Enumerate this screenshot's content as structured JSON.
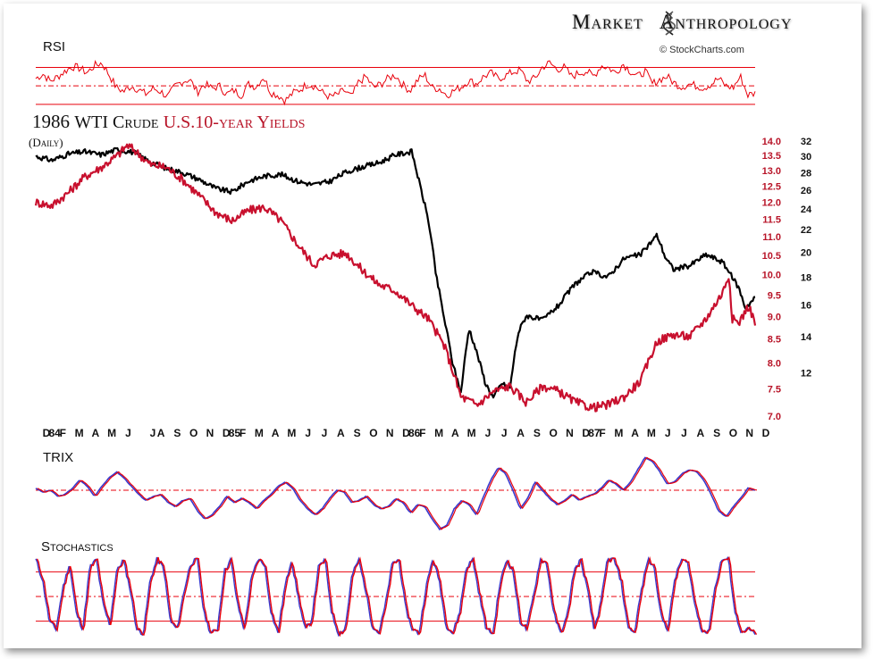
{
  "brand": {
    "left": "Market",
    "right": "Anthropology",
    "copyright": "© StockCharts.com"
  },
  "colors": {
    "crude": "#000000",
    "yields": "#c8102e",
    "band": "#e8000b",
    "trix_blue": "#3a3acd"
  },
  "chart_data": [
    {
      "type": "line",
      "panel": "RSI",
      "label": "RSI",
      "reference_lines": [
        "overbought",
        "midline",
        "oversold"
      ],
      "series": [
        {
          "values": [
            58,
            63,
            55,
            60,
            66,
            71,
            69,
            64,
            72,
            75,
            62,
            48,
            44,
            50,
            46,
            41,
            47,
            44,
            38,
            50,
            55,
            57,
            43,
            52,
            47,
            50,
            41,
            45,
            40,
            52,
            49,
            60,
            43,
            40,
            34,
            42,
            46,
            52,
            50,
            43,
            38,
            40,
            45,
            38,
            54,
            60,
            48,
            52,
            58,
            62,
            51,
            45,
            56,
            62,
            48,
            47,
            40,
            45,
            49,
            56,
            52,
            60,
            64,
            58,
            61,
            65,
            67,
            55,
            58,
            70,
            75,
            68,
            70,
            60,
            64,
            66,
            60,
            72,
            70,
            64,
            74,
            66,
            60,
            66,
            52,
            57,
            60,
            53,
            49,
            52,
            50,
            48,
            52,
            58,
            50,
            48,
            60,
            40,
            42
          ]
        }
      ]
    },
    {
      "type": "line",
      "panel": "price",
      "title": "1986",
      "title_crude": "WTI Crude",
      "title_yields": "U.S.10-year Yields",
      "subtitle": "(Daily)",
      "x_labels": [
        "D",
        "84",
        "F",
        "M",
        "A",
        "M",
        "J",
        "J",
        "A",
        "S",
        "O",
        "N",
        "D",
        "85",
        "F",
        "M",
        "A",
        "M",
        "J",
        "J",
        "A",
        "S",
        "O",
        "N",
        "D",
        "86",
        "F",
        "M",
        "A",
        "M",
        "J",
        "J",
        "A",
        "S",
        "O",
        "N",
        "D",
        "87",
        "F",
        "M",
        "A",
        "M",
        "J",
        "J",
        "A",
        "S",
        "O",
        "N",
        "D"
      ],
      "x_label_positions": [
        0,
        0.5,
        1,
        2,
        3,
        4,
        5,
        6.5,
        7,
        8,
        9,
        10,
        11,
        11.5,
        12,
        13,
        14,
        15,
        16,
        17,
        18,
        19,
        20,
        21,
        22,
        22.5,
        23,
        24,
        25,
        26,
        27,
        28,
        29,
        30,
        31,
        32,
        33,
        33.5,
        34,
        35,
        36,
        37,
        38,
        39,
        40,
        41,
        42,
        43,
        44
      ],
      "yield_axis": {
        "ticks": [
          "14.0",
          "13.5",
          "13.0",
          "12.5",
          "12.0",
          "11.5",
          "11.0",
          "10.5",
          "10.0",
          "9.5",
          "9.0",
          "8.5",
          "8.0",
          "7.5",
          "7.0"
        ],
        "range": [
          7.0,
          14.0
        ],
        "scale": "log"
      },
      "crude_axis": {
        "ticks": [
          "32",
          "30",
          "28",
          "26",
          "24",
          "22",
          "20",
          "18",
          "16",
          "14",
          "12"
        ],
        "range": [
          10.0,
          32.0
        ],
        "scale": "log"
      },
      "series": [
        {
          "key": "crude",
          "name": "WTI Crude",
          "x": [
            0,
            1,
            2,
            3,
            4,
            5,
            6,
            7,
            8,
            9,
            10,
            11,
            12,
            13,
            14,
            15,
            16,
            17,
            18,
            19,
            20,
            21,
            22,
            23,
            23.5,
            24,
            24.5,
            25,
            25.5,
            26,
            26.5,
            27,
            27.5,
            28,
            28.5,
            29,
            29.5,
            30,
            31,
            32,
            33,
            34,
            35,
            36,
            37,
            38,
            38.5,
            39,
            40,
            41,
            42,
            43,
            43.4,
            44
          ],
          "values": [
            30.0,
            29.5,
            30.3,
            30.6,
            30.2,
            30.9,
            30.5,
            29.3,
            28.5,
            28.0,
            27.2,
            26.2,
            25.8,
            27.0,
            27.6,
            27.8,
            27.0,
            26.6,
            27.0,
            28.1,
            28.7,
            29.2,
            30.2,
            30.6,
            26.5,
            23.0,
            18.0,
            15.0,
            12.5,
            11.0,
            14.5,
            13.0,
            11.5,
            10.8,
            11.5,
            11.2,
            14.2,
            15.3,
            15.0,
            16.0,
            17.5,
            18.4,
            18.0,
            19.5,
            19.8,
            21.5,
            19.6,
            18.6,
            18.9,
            19.8,
            19.2,
            17.2,
            15.8,
            16.5
          ]
        },
        {
          "key": "yields",
          "name": "U.S.10-year Yields",
          "x": [
            0,
            1,
            2,
            3,
            4,
            5,
            5.6,
            6,
            7,
            8,
            9,
            10,
            11,
            12,
            13,
            14,
            15,
            16,
            17,
            18,
            19,
            20,
            21,
            22,
            23,
            24,
            25,
            26,
            27,
            28,
            29,
            30,
            31,
            32,
            33,
            34,
            35,
            36,
            37,
            38,
            39,
            40,
            41,
            42,
            42.4,
            42.6,
            43,
            43.6,
            44
          ],
          "values": [
            12.0,
            11.9,
            12.3,
            12.8,
            13.1,
            13.5,
            13.85,
            13.7,
            13.2,
            13.1,
            12.7,
            12.2,
            11.7,
            11.45,
            11.75,
            11.85,
            11.45,
            10.8,
            10.25,
            10.5,
            10.55,
            10.1,
            9.75,
            9.6,
            9.25,
            8.95,
            8.35,
            7.35,
            7.2,
            7.45,
            7.55,
            7.25,
            7.55,
            7.45,
            7.25,
            7.15,
            7.2,
            7.35,
            7.65,
            8.45,
            8.6,
            8.55,
            8.95,
            9.55,
            10.0,
            8.95,
            8.85,
            9.25,
            8.85
          ]
        }
      ]
    },
    {
      "type": "line",
      "panel": "TRIX",
      "label": "TRIX",
      "series": [
        {
          "values": [
            0.1,
            -0.1,
            0.0,
            -0.3,
            -0.2,
            0.1,
            0.5,
            0.2,
            -0.3,
            0.2,
            0.6,
            0.9,
            0.6,
            0.2,
            -0.2,
            -0.5,
            -0.3,
            -0.2,
            -0.6,
            -0.8,
            -0.5,
            -0.4,
            -1.0,
            -1.4,
            -1.2,
            -0.8,
            -0.3,
            -0.6,
            -0.4,
            -0.6,
            -0.9,
            -0.5,
            -0.2,
            0.2,
            0.4,
            0.1,
            -0.5,
            -0.9,
            -1.2,
            -0.9,
            -0.4,
            0.0,
            -0.1,
            -0.6,
            -0.5,
            -0.3,
            -0.7,
            -0.9,
            -0.8,
            -0.4,
            -0.6,
            -1.1,
            -0.7,
            -0.8,
            -1.4,
            -1.9,
            -1.7,
            -0.9,
            -0.5,
            -0.7,
            -1.2,
            -0.3,
            0.5,
            1.1,
            0.8,
            0.0,
            -0.9,
            -0.4,
            0.4,
            0.0,
            -0.4,
            -0.7,
            -0.5,
            -0.2,
            -0.5,
            -0.3,
            -0.2,
            0.1,
            0.5,
            0.3,
            0.0,
            0.4,
            1.0,
            1.6,
            1.4,
            0.9,
            0.3,
            0.4,
            0.8,
            1.0,
            0.9,
            0.5,
            -0.2,
            -1.0,
            -1.3,
            -0.8,
            -0.4,
            0.1,
            0.0
          ]
        }
      ]
    },
    {
      "type": "line",
      "panel": "Stochastics",
      "label": "Stochastics",
      "reference_lines": [
        "overbought",
        "midline",
        "oversold"
      ],
      "series": [
        {
          "values": [
            95,
            70,
            20,
            10,
            60,
            90,
            30,
            10,
            85,
            95,
            40,
            15,
            80,
            95,
            60,
            10,
            5,
            70,
            95,
            85,
            20,
            10,
            55,
            90,
            95,
            30,
            5,
            10,
            80,
            95,
            40,
            10,
            70,
            95,
            90,
            30,
            5,
            60,
            95,
            50,
            10,
            20,
            85,
            95,
            30,
            5,
            10,
            75,
            95,
            60,
            15,
            5,
            40,
            90,
            95,
            35,
            10,
            5,
            60,
            95,
            70,
            15,
            5,
            30,
            85,
            95,
            50,
            10,
            5,
            65,
            95,
            80,
            20,
            10,
            50,
            95,
            90,
            30,
            5,
            25,
            80,
            95,
            60,
            10,
            40,
            95,
            95,
            70,
            15,
            5,
            55,
            95,
            85,
            25,
            10,
            70,
            95,
            90,
            40,
            10,
            5,
            60,
            95,
            95,
            30,
            5,
            10,
            5
          ]
        }
      ]
    }
  ]
}
